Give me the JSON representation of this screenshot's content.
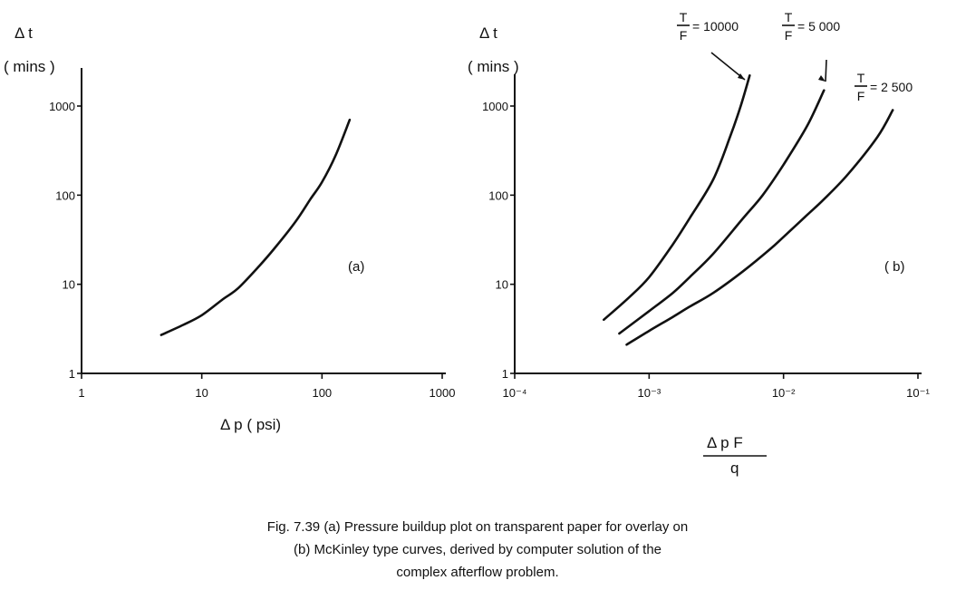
{
  "chart_data": [
    {
      "type": "line",
      "panel_label": "(a)",
      "ylabel_main": "Δ t",
      "ylabel_unit": "( mins )",
      "xlabel": "Δ p ( psi)",
      "x_scale": "log",
      "y_scale": "log",
      "xlim": [
        1,
        1000
      ],
      "ylim": [
        1,
        1000
      ],
      "x_ticks": [
        1,
        10,
        100,
        1000
      ],
      "x_tick_labels": [
        "1",
        "10",
        "100",
        "1000"
      ],
      "y_ticks": [
        1,
        10,
        100,
        1000
      ],
      "y_tick_labels": [
        "1",
        "10",
        "100",
        "1000"
      ],
      "series": [
        {
          "x": [
            4.6,
            7,
            10,
            15,
            20,
            30,
            40,
            60,
            80,
            100,
            130,
            170
          ],
          "y": [
            2.7,
            3.5,
            4.5,
            6.8,
            9,
            16,
            25,
            50,
            90,
            140,
            280,
            700
          ]
        }
      ]
    },
    {
      "type": "line",
      "panel_label": "( b)",
      "ylabel_main": "Δ t",
      "ylabel_unit": "( mins )",
      "xlabel_numerator": "Δ p F",
      "xlabel_denominator": "q",
      "x_scale": "log",
      "y_scale": "log",
      "xlim": [
        0.0001,
        0.1
      ],
      "ylim": [
        1,
        1000
      ],
      "x_ticks": [
        0.0001,
        0.001,
        0.01,
        0.1
      ],
      "x_tick_labels": [
        "10⁻⁴",
        "10⁻³",
        "10⁻²",
        "10⁻¹"
      ],
      "y_ticks": [
        1,
        10,
        100,
        1000
      ],
      "y_tick_labels": [
        "1",
        "10",
        "100",
        "1000"
      ],
      "series": [
        {
          "name": "T/F = 10000",
          "label_num": "T",
          "label_den": "F",
          "label_value": "= 10000",
          "x": [
            0.00046,
            0.0007,
            0.001,
            0.0015,
            0.002,
            0.003,
            0.004,
            0.0048,
            0.0056
          ],
          "y": [
            4,
            7,
            12,
            28,
            55,
            150,
            450,
            1000,
            2200
          ]
        },
        {
          "name": "T/F = 5000",
          "label_num": "T",
          "label_den": "F",
          "label_value": "= 5 000",
          "x": [
            0.0006,
            0.001,
            0.0015,
            0.002,
            0.003,
            0.005,
            0.007,
            0.01,
            0.015,
            0.02
          ],
          "y": [
            2.8,
            5,
            8,
            12,
            22,
            55,
            100,
            220,
            600,
            1500
          ]
        },
        {
          "name": "T/F = 2500",
          "label_num": "T",
          "label_den": "F",
          "label_value": "= 2 500",
          "x": [
            0.00068,
            0.001,
            0.0015,
            0.002,
            0.003,
            0.005,
            0.008,
            0.01,
            0.015,
            0.02,
            0.03,
            0.05,
            0.065
          ],
          "y": [
            2.1,
            3,
            4.3,
            5.6,
            8,
            14,
            25,
            34,
            60,
            90,
            170,
            450,
            900
          ]
        }
      ]
    }
  ],
  "caption": {
    "line1": "Fig. 7.39  (a) Pressure buildup plot on transparent paper for overlay on",
    "line2": "(b) McKinley type curves, derived by computer solution of the",
    "line3": "complex afterflow problem."
  }
}
